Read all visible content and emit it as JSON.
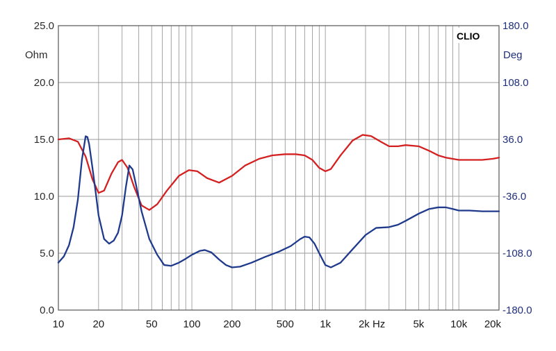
{
  "chart_data": {
    "type": "line",
    "badge": "CLIO",
    "x_scale": "log",
    "xlim": [
      10,
      20000
    ],
    "x_tick_values": [
      10,
      20,
      50,
      100,
      200,
      500,
      1000,
      2000,
      5000,
      10000,
      20000
    ],
    "x_tick_labels": [
      "10",
      "20",
      "50",
      "100",
      "200",
      "500",
      "1k",
      "2k Hz",
      "5k",
      "10k",
      "20k"
    ],
    "y_left": {
      "unit": "Ohm",
      "lim": [
        0,
        25
      ],
      "ticks": [
        0,
        5,
        10,
        15,
        20,
        25
      ],
      "tick_labels": [
        "0.0",
        "5.0",
        "10.0",
        "15.0",
        "20.0",
        "25.0"
      ]
    },
    "y_right": {
      "unit": "Deg",
      "lim": [
        -180,
        180
      ],
      "ticks": [
        -180,
        -108,
        -36,
        36,
        108,
        180
      ],
      "tick_labels": [
        "-180.0",
        "-108.0",
        "-36.0",
        "36.0",
        "108.0",
        "180.0"
      ]
    },
    "grid": true,
    "series": [
      {
        "axis": "left",
        "color": "#d42020",
        "x": [
          10,
          12,
          14,
          16,
          18,
          20,
          22,
          25,
          28,
          30,
          33,
          37,
          42,
          48,
          55,
          65,
          80,
          95,
          110,
          130,
          160,
          200,
          250,
          320,
          400,
          500,
          600,
          700,
          800,
          900,
          1000,
          1100,
          1300,
          1600,
          1900,
          2200,
          2600,
          3000,
          3500,
          4000,
          5000,
          6000,
          7000,
          8000,
          10000,
          12000,
          15000,
          18000,
          20000
        ],
        "values": [
          15.0,
          15.1,
          14.8,
          13.5,
          11.5,
          10.3,
          10.5,
          12.0,
          13.0,
          13.2,
          12.5,
          10.8,
          9.2,
          8.8,
          9.3,
          10.5,
          11.8,
          12.3,
          12.2,
          11.6,
          11.2,
          11.8,
          12.7,
          13.3,
          13.6,
          13.7,
          13.7,
          13.6,
          13.2,
          12.5,
          12.2,
          12.4,
          13.6,
          14.9,
          15.4,
          15.3,
          14.8,
          14.4,
          14.4,
          14.5,
          14.4,
          14.0,
          13.6,
          13.4,
          13.2,
          13.2,
          13.2,
          13.3,
          13.4
        ]
      },
      {
        "axis": "right",
        "color": "#1f3a8c",
        "x": [
          10,
          11,
          12,
          13,
          14,
          15,
          16,
          16.5,
          17,
          18,
          19,
          20,
          22,
          24,
          26,
          28,
          30,
          32,
          34,
          36,
          38,
          42,
          48,
          55,
          62,
          70,
          80,
          90,
          100,
          115,
          125,
          140,
          160,
          180,
          200,
          230,
          280,
          350,
          450,
          550,
          650,
          700,
          760,
          830,
          900,
          1000,
          1100,
          1300,
          1600,
          2000,
          2400,
          3000,
          3500,
          4000,
          5000,
          6000,
          7000,
          8000,
          9000,
          10000,
          12000,
          15000,
          18000,
          20000
        ],
        "values": [
          -120,
          -112,
          -98,
          -75,
          -40,
          10,
          40,
          39,
          30,
          0,
          -30,
          -60,
          -90,
          -96,
          -92,
          -82,
          -60,
          -25,
          3,
          -2,
          -20,
          -55,
          -90,
          -110,
          -123,
          -124,
          -120,
          -115,
          -110,
          -105,
          -104,
          -107,
          -116,
          -123,
          -126,
          -125,
          -120,
          -113,
          -106,
          -99,
          -90,
          -87,
          -88,
          -96,
          -108,
          -123,
          -126,
          -120,
          -103,
          -85,
          -76,
          -75,
          -72,
          -67,
          -58,
          -52,
          -50,
          -50,
          -52,
          -54,
          -54,
          -55,
          -55,
          -55
        ]
      }
    ]
  }
}
